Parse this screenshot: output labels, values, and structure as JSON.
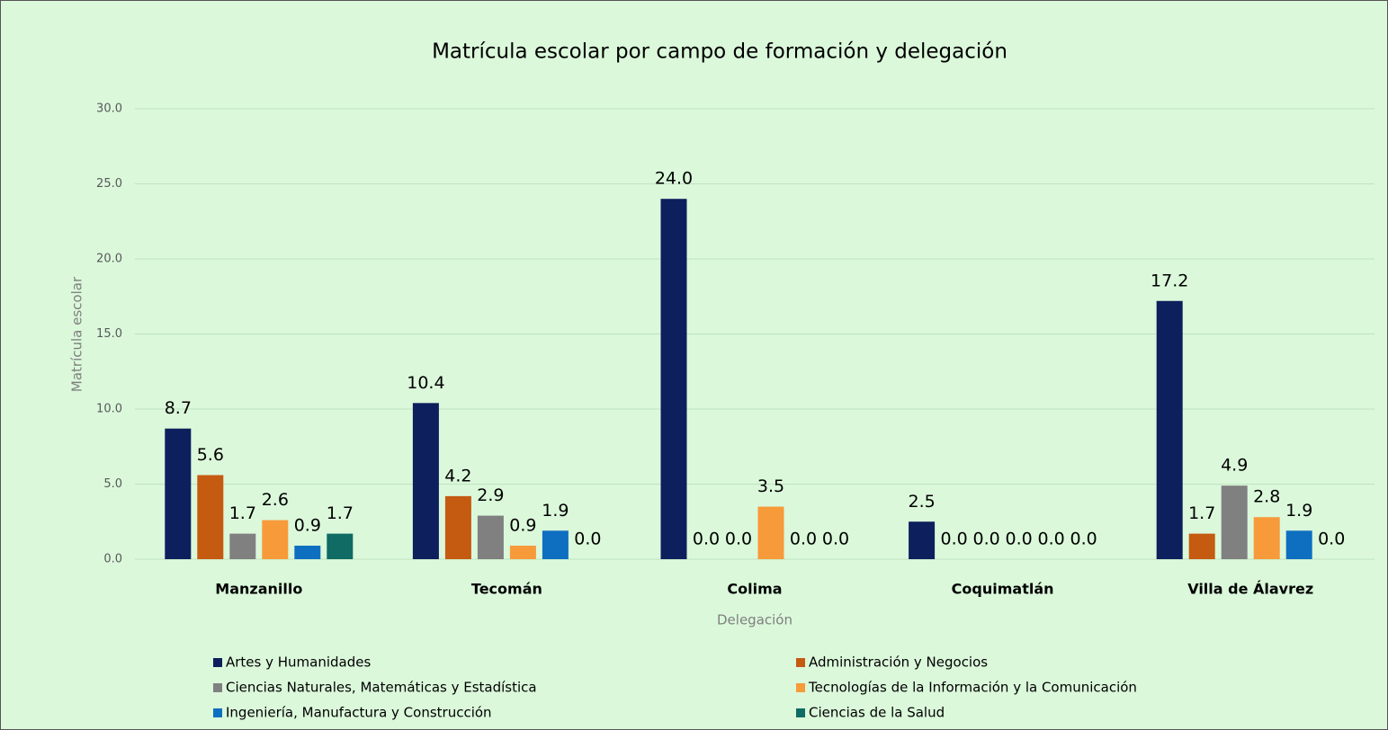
{
  "chart_data": {
    "type": "bar",
    "title": "Matrícula escolar por campo de formación y delegación",
    "ylabel": "Matrícula escolar",
    "xlabel": "Delegación",
    "categories": [
      "Manzanillo",
      "Tecomán",
      "Colima",
      "Coquimatlán",
      "Villa de Álavrez"
    ],
    "series": [
      {
        "name": "Artes y Humanidades",
        "color": "#0d1f5c",
        "values": [
          8.7,
          10.4,
          24.0,
          2.5,
          17.2
        ],
        "value_labels": [
          "8.7",
          "10.4",
          "24.0",
          "2.5",
          "17.2"
        ]
      },
      {
        "name": "Administración y Negocios",
        "color": "#c55a11",
        "values": [
          5.6,
          4.2,
          0.0,
          0.0,
          1.7
        ],
        "value_labels": [
          "5.6",
          "4.2",
          "0.0",
          "0.0",
          "1.7"
        ]
      },
      {
        "name": "Ciencias Naturales, Matemáticas y Estadística",
        "color": "#808080",
        "values": [
          1.7,
          2.9,
          0.0,
          0.0,
          4.9
        ],
        "value_labels": [
          "1.7",
          "2.9",
          "0.0",
          "0.0",
          "4.9"
        ]
      },
      {
        "name": "Tecnologías de la Información y la Comunicación",
        "color": "#f79a3a",
        "values": [
          2.6,
          0.9,
          3.5,
          0.0,
          2.8
        ],
        "value_labels": [
          "2.6",
          "0.9",
          "3.5",
          "0.0",
          "2.8"
        ]
      },
      {
        "name": "Ingeniería, Manufactura y Construcción",
        "color": "#0e6fc1",
        "values": [
          0.9,
          1.9,
          0.0,
          0.0,
          1.9
        ],
        "value_labels": [
          "0.9",
          "1.9",
          "0.0",
          "0.0",
          "1.9"
        ]
      },
      {
        "name": "Ciencias de la Salud",
        "color": "#0f6b64",
        "values": [
          1.7,
          0.0,
          0.0,
          0.0,
          0.0
        ],
        "value_labels": [
          "1.7",
          "0.0",
          "0.0",
          "0.0",
          "0.0"
        ]
      }
    ],
    "ylim": [
      0,
      30
    ],
    "yticks": [
      {
        "value": 0,
        "label": "0.0"
      },
      {
        "value": 5,
        "label": "5.0"
      },
      {
        "value": 10,
        "label": "10.0"
      },
      {
        "value": 15,
        "label": "15.0"
      },
      {
        "value": 20,
        "label": "20.0"
      },
      {
        "value": 25,
        "label": "25.0"
      },
      {
        "value": 30,
        "label": "30.0"
      }
    ],
    "grid": true,
    "legend": "bottom"
  }
}
